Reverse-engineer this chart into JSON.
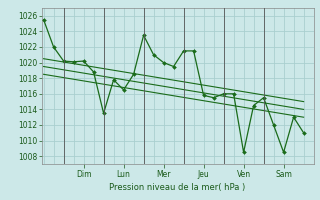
{
  "xlabel": "Pression niveau de la mer( hPa )",
  "ylim": [
    1007,
    1027
  ],
  "yticks": [
    1008,
    1010,
    1012,
    1014,
    1016,
    1018,
    1020,
    1022,
    1024,
    1026
  ],
  "day_labels": [
    "Dim",
    "Lun",
    "Mer",
    "Jeu",
    "Ven",
    "Sam"
  ],
  "day_positions": [
    2.0,
    4.0,
    6.0,
    8.0,
    10.0,
    12.0
  ],
  "xlim": [
    -0.1,
    13.5
  ],
  "background_color": "#cce8e8",
  "grid_color": "#aacfcf",
  "line_color": "#1a6b1a",
  "marker_color": "#1a6b1a",
  "series1_x": [
    0.0,
    0.5,
    1.0,
    1.5,
    2.0,
    2.5,
    3.0,
    3.5,
    4.0,
    4.5,
    5.0,
    5.5,
    6.0,
    6.5,
    7.0,
    7.5,
    8.0,
    8.5,
    9.0,
    9.5,
    10.0,
    10.5,
    11.0,
    11.5,
    12.0,
    12.5,
    13.0
  ],
  "series1_y": [
    1025.5,
    1022.0,
    1020.2,
    1020.1,
    1020.2,
    1018.8,
    1013.5,
    1017.8,
    1016.5,
    1018.5,
    1023.5,
    1021.0,
    1020.0,
    1019.5,
    1021.5,
    1021.5,
    1015.8,
    1015.5,
    1016.0,
    1016.0,
    1008.5,
    1014.5,
    1015.5,
    1012.0,
    1008.5,
    1013.0,
    1011.0
  ],
  "trend1_x": [
    0.0,
    13.0
  ],
  "trend1_y": [
    1020.5,
    1015.0
  ],
  "trend2_x": [
    0.0,
    13.0
  ],
  "trend2_y": [
    1019.5,
    1014.0
  ],
  "trend3_x": [
    0.0,
    13.0
  ],
  "trend3_y": [
    1018.5,
    1013.0
  ],
  "separator_positions": [
    1.0,
    3.0,
    5.0,
    7.0,
    9.0,
    11.0
  ]
}
